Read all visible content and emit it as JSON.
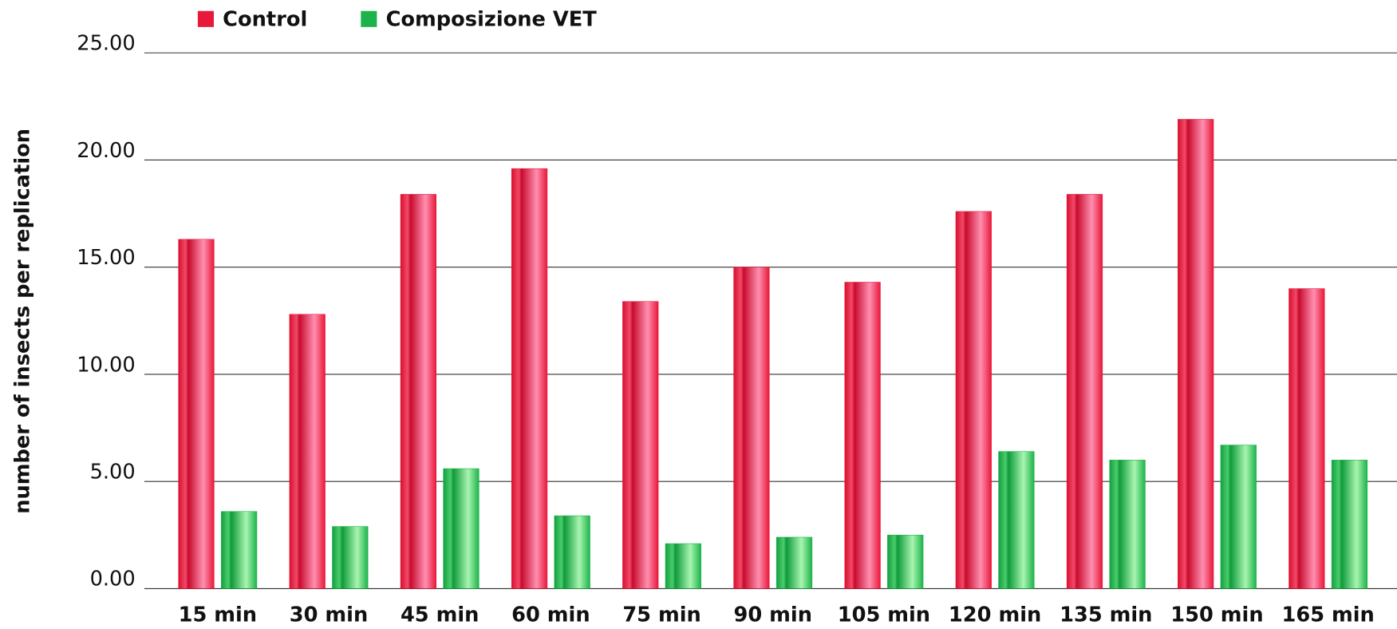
{
  "chart_data": {
    "type": "bar",
    "y_label": "number of insects per replication",
    "categories": [
      "15 min",
      "30 min",
      "45 min",
      "60 min",
      "75 min",
      "90 min",
      "105 min",
      "120 min",
      "135 min",
      "150 min",
      "165 min"
    ],
    "series": [
      {
        "name": "Control",
        "color": "#e8183a",
        "values": [
          16.3,
          12.8,
          18.4,
          19.6,
          13.4,
          15.0,
          14.3,
          17.6,
          18.4,
          21.9,
          14.0
        ]
      },
      {
        "name": "Composizione VET",
        "color": "#1db34a",
        "values": [
          3.6,
          2.9,
          5.6,
          3.4,
          2.1,
          2.4,
          2.5,
          6.4,
          6.0,
          6.7,
          6.0
        ]
      }
    ],
    "ylim": [
      0,
      25
    ],
    "yticks": [
      {
        "value": 0,
        "label": "0.00"
      },
      {
        "value": 5,
        "label": "5.00"
      },
      {
        "value": 10,
        "label": "10.00"
      },
      {
        "value": 15,
        "label": "15.00"
      },
      {
        "value": 20,
        "label": "20.00"
      },
      {
        "value": 25,
        "label": "25.00"
      }
    ],
    "grid": true,
    "legend": "top"
  }
}
